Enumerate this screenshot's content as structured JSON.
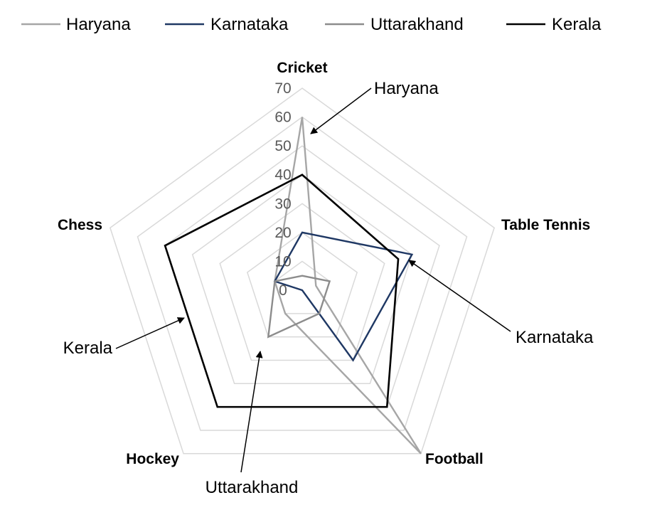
{
  "chart_data": {
    "type": "radar",
    "categories": [
      "Cricket",
      "Table Tennis",
      "Football",
      "Hockey",
      "Chess"
    ],
    "rlim": [
      0,
      70
    ],
    "ticks": [
      0,
      10,
      20,
      30,
      40,
      50,
      60,
      70
    ],
    "grid": true,
    "legend_position": "top",
    "series": [
      {
        "name": "Haryana",
        "color": "#a6a6a6",
        "values": [
          60,
          5,
          70,
          10,
          10
        ]
      },
      {
        "name": "Karnataka",
        "color": "#1f3864",
        "values": [
          20,
          40,
          30,
          0,
          10
        ]
      },
      {
        "name": "Uttarakhand",
        "color": "#8c8c8c",
        "values": [
          5,
          10,
          10,
          20,
          10
        ]
      },
      {
        "name": "Kerala",
        "color": "#000000",
        "values": [
          40,
          35,
          50,
          50,
          50
        ]
      }
    ],
    "annotations": [
      {
        "text": "Haryana",
        "series": "Haryana"
      },
      {
        "text": "Karnataka",
        "series": "Karnataka"
      },
      {
        "text": "Kerala",
        "series": "Kerala"
      },
      {
        "text": "Uttarakhand",
        "series": "Uttarakhand"
      }
    ]
  }
}
